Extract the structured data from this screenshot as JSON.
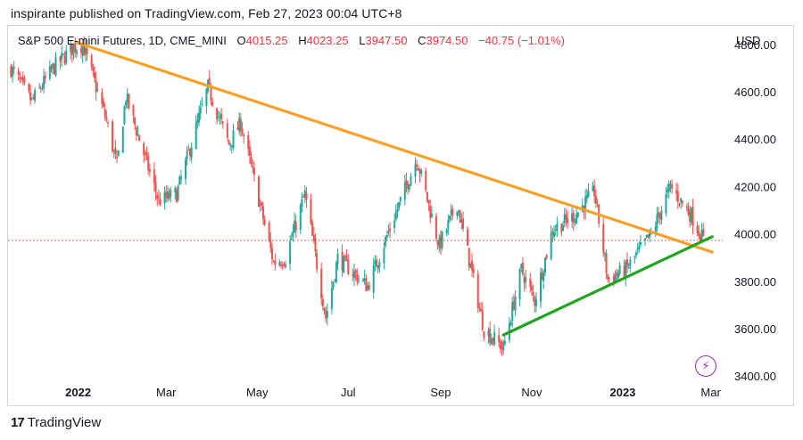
{
  "caption": "inspirante published on TradingView.com, Feb 27, 2023 00:04 UTC+8",
  "brand": {
    "name": "TradingView",
    "logo": "17"
  },
  "legend": {
    "symbol": "S&P 500 E-mini Futures, 1D, CME_MINI",
    "open_label": "O",
    "open": "4015.25",
    "high_label": "H",
    "high": "4023.25",
    "low_label": "L",
    "low": "3947.50",
    "close_label": "C",
    "close": "3974.50",
    "change": "−40.75 (−1.01%)"
  },
  "colors": {
    "up": "#26a69a",
    "down": "#ef5350",
    "resistance": "#f7a128",
    "support": "#1ea51e",
    "price_line": "#e53935",
    "event_icon": "#9c27b0"
  },
  "chart_data": {
    "type": "candlestick",
    "ylabel": "USD",
    "ylim": [
      3380,
      4880
    ],
    "y_ticks": [
      "4800.00",
      "4600.00",
      "4400.00",
      "4200.00",
      "4000.00",
      "3800.00",
      "3600.00",
      "3400.00"
    ],
    "x_ticks": [
      {
        "label": "2022",
        "date": "2022-01-01",
        "bold": true
      },
      {
        "label": "Mar",
        "date": "2022-03-01",
        "bold": false
      },
      {
        "label": "May",
        "date": "2022-05-01",
        "bold": false
      },
      {
        "label": "Jul",
        "date": "2022-07-01",
        "bold": false
      },
      {
        "label": "Sep",
        "date": "2022-09-01",
        "bold": false
      },
      {
        "label": "Nov",
        "date": "2022-11-01",
        "bold": false
      },
      {
        "label": "2023",
        "date": "2023-01-01",
        "bold": true
      },
      {
        "label": "Mar",
        "date": "2023-03-01",
        "bold": false
      }
    ],
    "xlim": [
      "2021-11-15",
      "2023-03-09"
    ],
    "current_price": 3974.5,
    "path": [
      [
        "2021-11-17",
        4700
      ],
      [
        "2021-12-01",
        4560
      ],
      [
        "2021-12-15",
        4700
      ],
      [
        "2021-12-29",
        4790
      ],
      [
        "2022-01-04",
        4800
      ],
      [
        "2022-01-20",
        4480
      ],
      [
        "2022-01-27",
        4290
      ],
      [
        "2022-02-02",
        4580
      ],
      [
        "2022-02-24",
        4140
      ],
      [
        "2022-03-08",
        4170
      ],
      [
        "2022-03-29",
        4620
      ],
      [
        "2022-04-12",
        4380
      ],
      [
        "2022-04-20",
        4470
      ],
      [
        "2022-05-12",
        3880
      ],
      [
        "2022-05-20",
        3900
      ],
      [
        "2022-06-02",
        4170
      ],
      [
        "2022-06-16",
        3650
      ],
      [
        "2022-06-24",
        3900
      ],
      [
        "2022-07-14",
        3780
      ],
      [
        "2022-08-16",
        4320
      ],
      [
        "2022-08-31",
        3950
      ],
      [
        "2022-09-12",
        4130
      ],
      [
        "2022-09-30",
        3600
      ],
      [
        "2022-10-13",
        3520
      ],
      [
        "2022-10-25",
        3850
      ],
      [
        "2022-11-03",
        3720
      ],
      [
        "2022-11-15",
        4020
      ],
      [
        "2022-11-30",
        4080
      ],
      [
        "2022-12-13",
        4180
      ],
      [
        "2022-12-22",
        3810
      ],
      [
        "2023-01-03",
        3850
      ],
      [
        "2023-01-20",
        4000
      ],
      [
        "2023-02-02",
        4200
      ],
      [
        "2023-02-16",
        4080
      ],
      [
        "2023-02-24",
        3974.5
      ]
    ],
    "trendlines": [
      {
        "name": "resistance",
        "from": [
          "2021-12-30",
          4812
        ],
        "to": [
          "2023-03-02",
          3925
        ]
      },
      {
        "name": "support",
        "from": [
          "2022-10-13",
          3575
        ],
        "to": [
          "2023-03-02",
          3990
        ]
      }
    ]
  }
}
